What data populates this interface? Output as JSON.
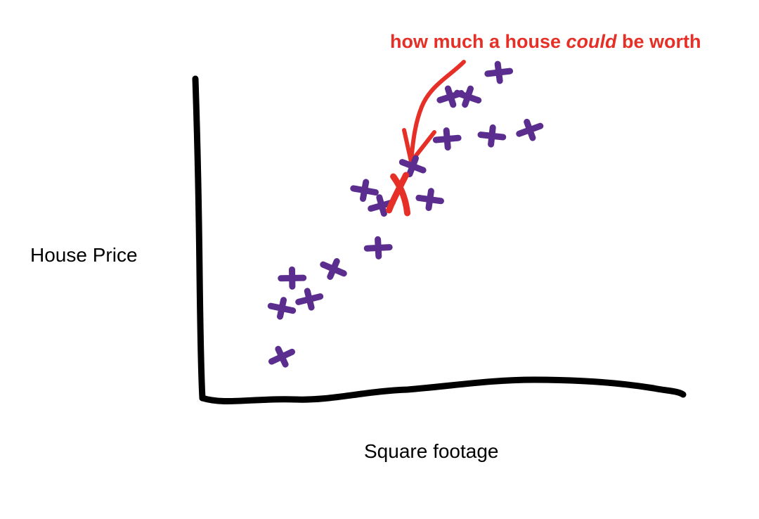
{
  "chart_data": {
    "type": "scatter",
    "title": "",
    "xlabel": "Square footage",
    "ylabel": "House Price",
    "grid": false,
    "legend": "none",
    "colors": {
      "points": "#5b2d8e",
      "highlight": "#e63027",
      "axes": "#000000"
    },
    "xlim": [
      0,
      100
    ],
    "ylim": [
      0,
      100
    ],
    "series": [
      {
        "points": [
          {
            "x": 10,
            "y": 6
          },
          {
            "x": 10,
            "y": 22
          },
          {
            "x": 13,
            "y": 32
          },
          {
            "x": 18,
            "y": 25
          },
          {
            "x": 25,
            "y": 35
          },
          {
            "x": 34,
            "y": 61
          },
          {
            "x": 38,
            "y": 42
          },
          {
            "x": 39,
            "y": 56
          },
          {
            "x": 48,
            "y": 69
          },
          {
            "x": 53,
            "y": 58
          },
          {
            "x": 58,
            "y": 78
          },
          {
            "x": 59,
            "y": 92
          },
          {
            "x": 64,
            "y": 92
          },
          {
            "x": 71,
            "y": 79
          },
          {
            "x": 73,
            "y": 100
          },
          {
            "x": 82,
            "y": 81
          }
        ]
      }
    ],
    "highlight": {
      "x": 44,
      "y": 60,
      "marker": "X"
    },
    "annotation": {
      "text_before": "how much a house ",
      "text_emph": "could",
      "text_after": " be worth"
    }
  }
}
